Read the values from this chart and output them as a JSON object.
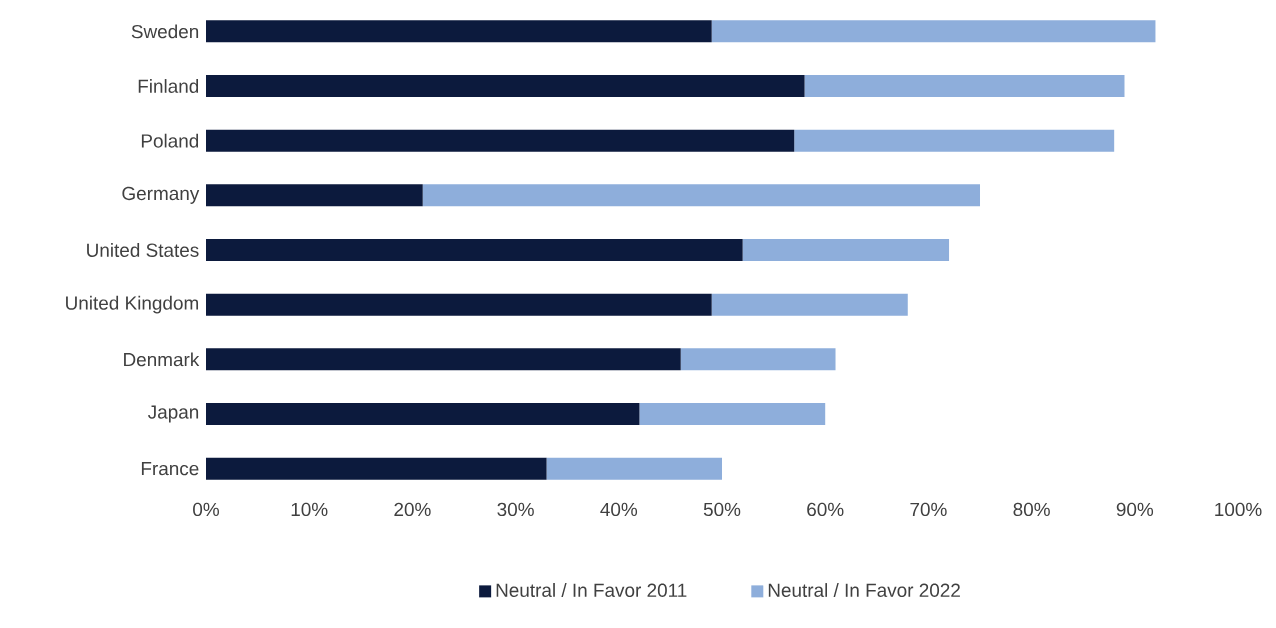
{
  "chart_data": {
    "type": "bar",
    "orientation": "horizontal",
    "stacked": true,
    "categories": [
      "Sweden",
      "Finland",
      "Poland",
      "Germany",
      "United States",
      "United Kingdom",
      "Denmark",
      "Japan",
      "France"
    ],
    "series": [
      {
        "name": "Neutral / In Favor 2011",
        "color": "#0c1a3d",
        "values": [
          49,
          58,
          57,
          21,
          52,
          49,
          46,
          42,
          33
        ]
      },
      {
        "name": "Neutral / In Favor 2022",
        "color": "#8eaedb",
        "values": [
          43,
          31,
          31,
          54,
          20,
          19,
          15,
          18,
          17
        ]
      }
    ],
    "xlim": [
      0,
      100
    ],
    "xticks": [
      {
        "value": 0,
        "label": "0%"
      },
      {
        "value": 10,
        "label": "10%"
      },
      {
        "value": 20,
        "label": "20%"
      },
      {
        "value": 30,
        "label": "30%"
      },
      {
        "value": 40,
        "label": "40%"
      },
      {
        "value": 50,
        "label": "50%"
      },
      {
        "value": 60,
        "label": "60%"
      },
      {
        "value": 70,
        "label": "70%"
      },
      {
        "value": 80,
        "label": "80%"
      },
      {
        "value": 90,
        "label": "90%"
      },
      {
        "value": 100,
        "label": "100%"
      }
    ],
    "legend": "bottom"
  }
}
